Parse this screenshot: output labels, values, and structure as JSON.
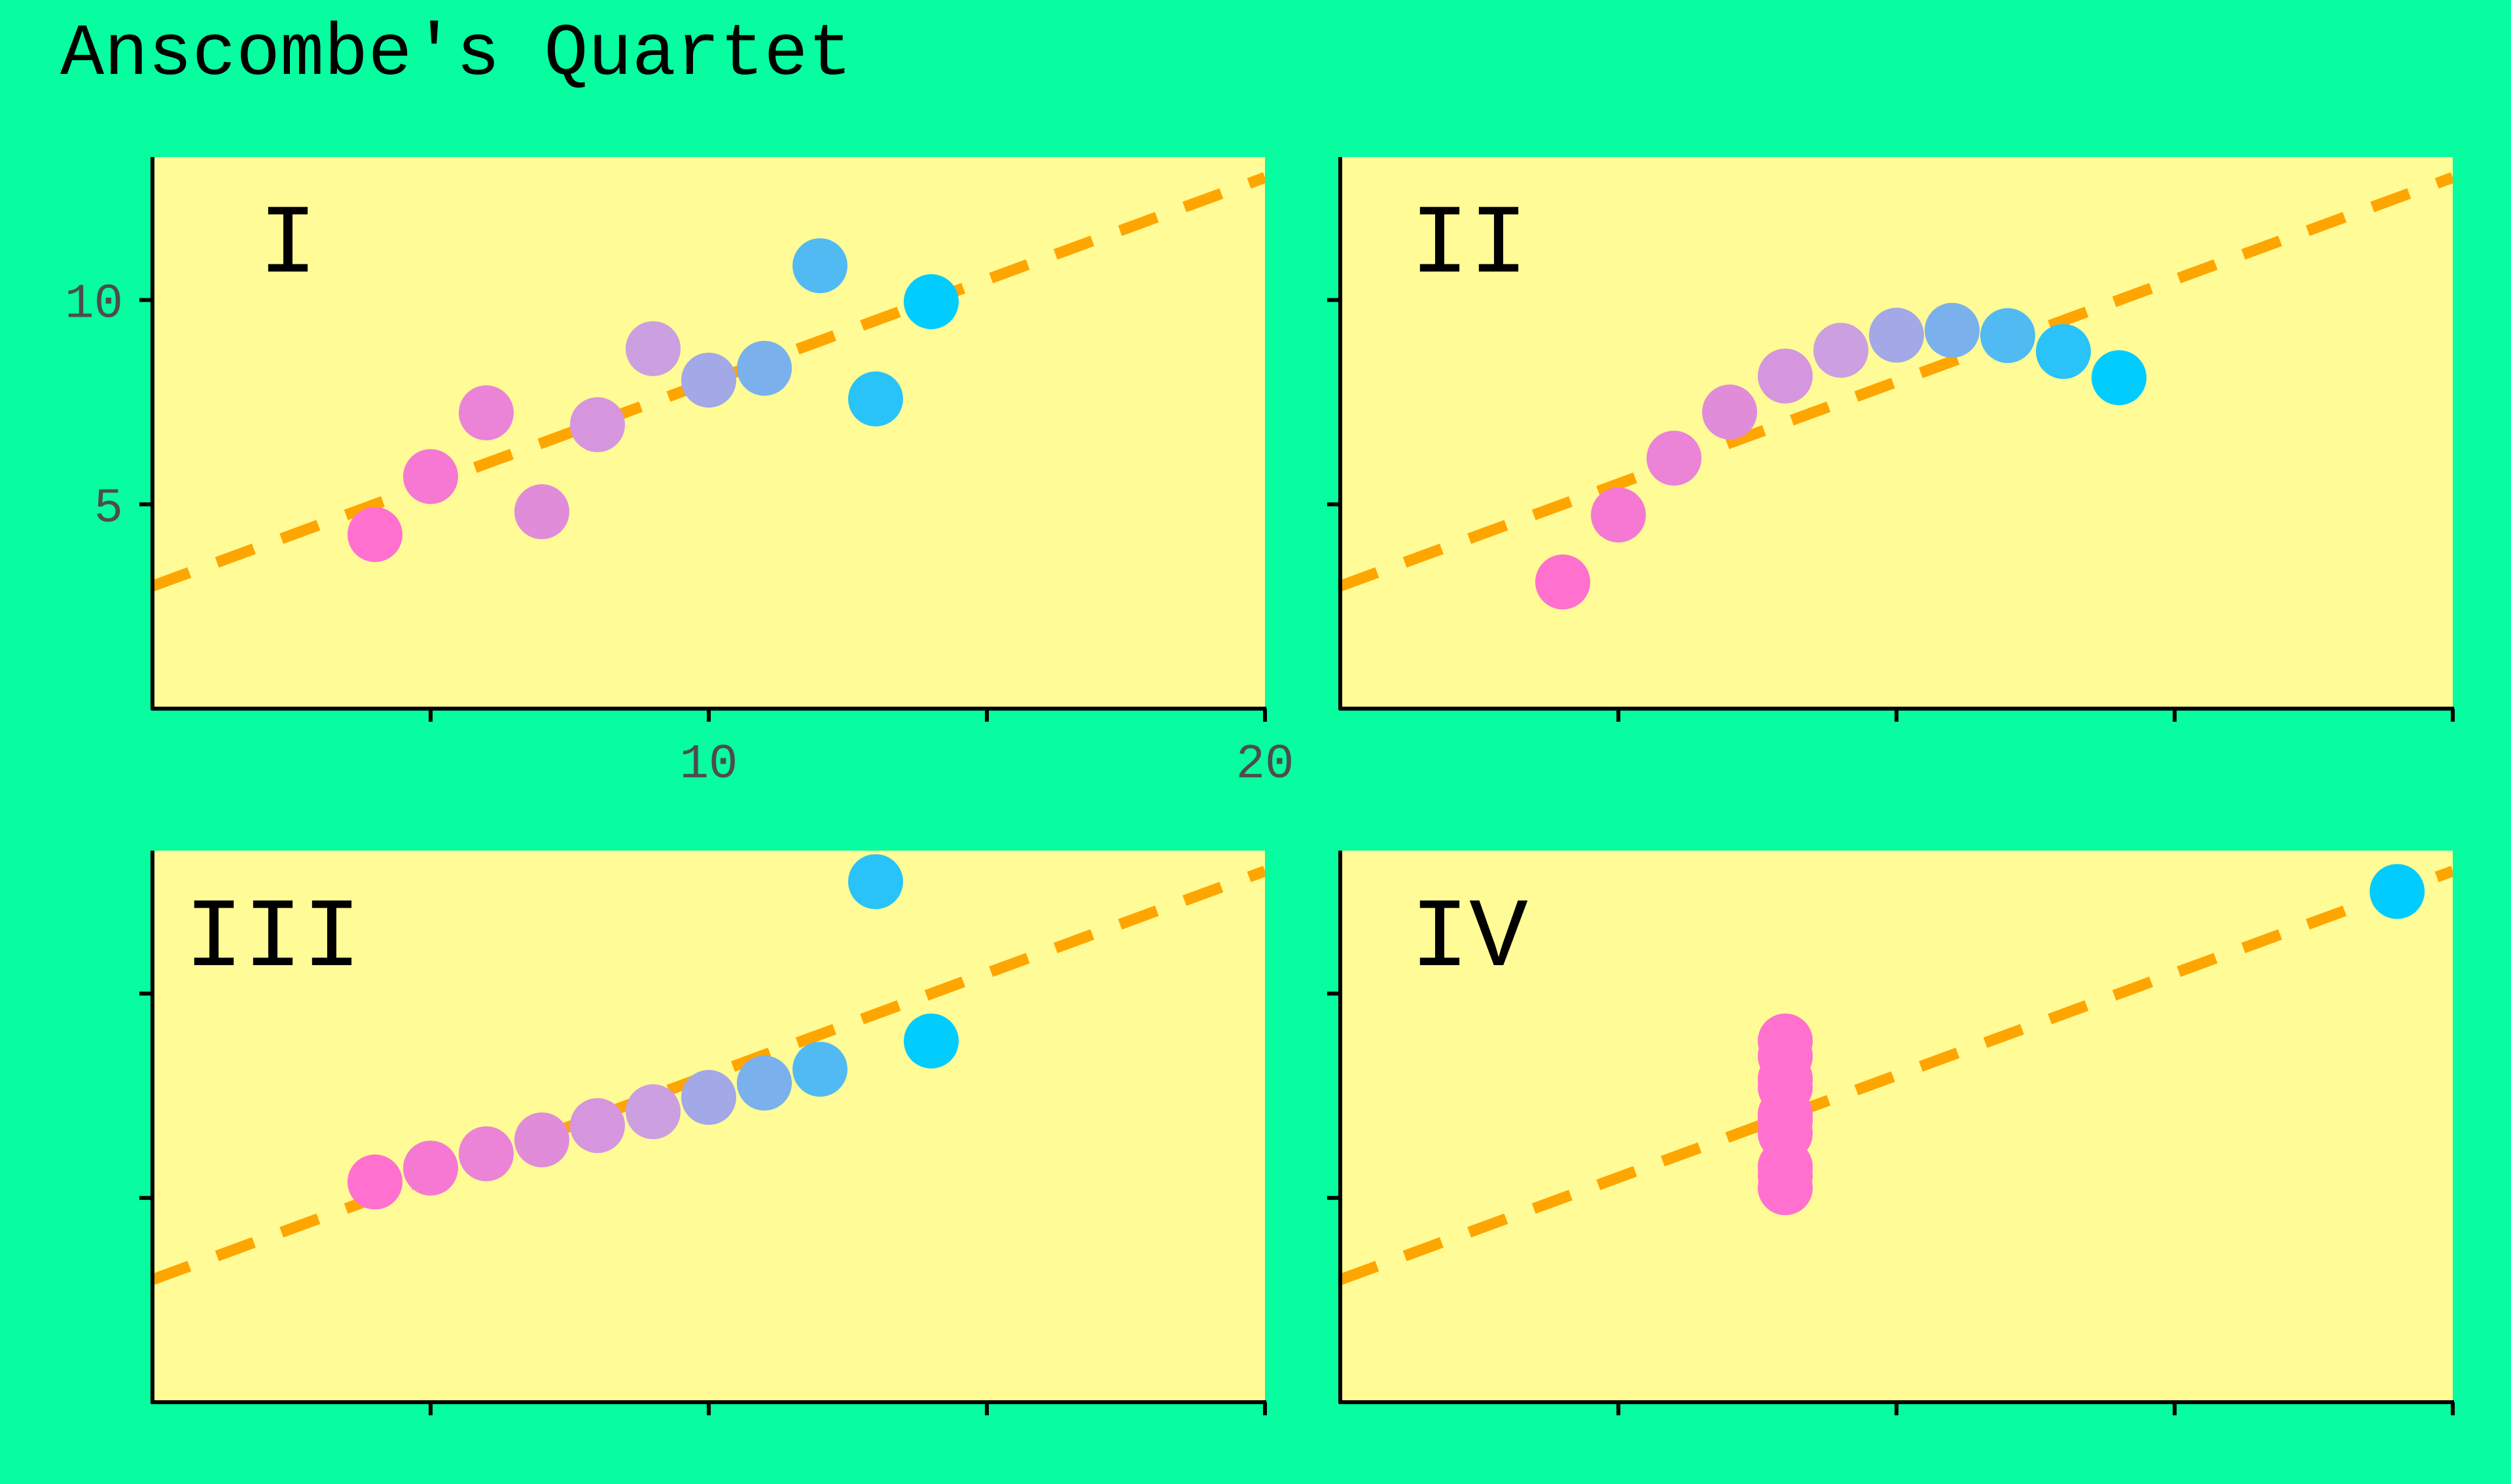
{
  "title": "Anscombe's Quartet",
  "colors": {
    "figure_background": "#07FD9F",
    "panel_background": "#FFFB96",
    "regression_line": "#FFA500",
    "point_gradient": [
      "#FF70CF",
      "#CC9FE0",
      "#00CCFF"
    ]
  },
  "chart_data": [
    {
      "type": "scatter",
      "panel_label": "I",
      "x": [
        10,
        8,
        13,
        9,
        11,
        14,
        6,
        4,
        12,
        7,
        5
      ],
      "y": [
        8.04,
        6.95,
        7.58,
        8.81,
        8.33,
        9.96,
        7.24,
        4.26,
        10.84,
        4.82,
        5.68
      ],
      "fit": {
        "intercept": 3.0,
        "slope": 0.5,
        "style": "dashed"
      },
      "xlim": [
        0,
        20
      ],
      "ylim": [
        0,
        13.5
      ],
      "x_ticks": [
        5,
        10,
        15,
        20
      ],
      "x_tick_labels": [
        "",
        "10",
        "",
        "20"
      ],
      "y_ticks": [
        5,
        10
      ],
      "y_tick_labels": [
        "5",
        "10"
      ],
      "grid": false
    },
    {
      "type": "scatter",
      "panel_label": "II",
      "x": [
        10,
        8,
        13,
        9,
        11,
        14,
        6,
        4,
        12,
        7,
        5
      ],
      "y": [
        9.14,
        8.14,
        8.74,
        8.77,
        9.26,
        8.1,
        6.13,
        3.1,
        9.13,
        7.26,
        4.74
      ],
      "fit": {
        "intercept": 3.0,
        "slope": 0.5,
        "style": "dashed"
      },
      "xlim": [
        0,
        20
      ],
      "ylim": [
        0,
        13.5
      ],
      "x_ticks": [
        5,
        10,
        15,
        20
      ],
      "x_tick_labels": [
        "",
        "",
        "",
        ""
      ],
      "y_ticks": [
        5,
        10
      ],
      "y_tick_labels": [
        "",
        ""
      ],
      "grid": false
    },
    {
      "type": "scatter",
      "panel_label": "III",
      "x": [
        10,
        8,
        13,
        9,
        11,
        14,
        6,
        4,
        12,
        7,
        5
      ],
      "y": [
        7.46,
        6.77,
        12.74,
        7.11,
        7.81,
        8.84,
        6.08,
        5.39,
        8.15,
        6.42,
        5.73
      ],
      "fit": {
        "intercept": 3.0,
        "slope": 0.5,
        "style": "dashed"
      },
      "xlim": [
        0,
        20
      ],
      "ylim": [
        0,
        13.5
      ],
      "x_ticks": [
        5,
        10,
        15,
        20
      ],
      "x_tick_labels": [
        "",
        "",
        "",
        ""
      ],
      "y_ticks": [
        5,
        10
      ],
      "y_tick_labels": [
        "",
        ""
      ],
      "grid": false
    },
    {
      "type": "scatter",
      "panel_label": "IV",
      "x": [
        8,
        8,
        8,
        8,
        8,
        8,
        8,
        19,
        8,
        8,
        8
      ],
      "y": [
        6.58,
        5.76,
        7.71,
        8.84,
        8.47,
        7.04,
        5.25,
        12.5,
        5.56,
        7.91,
        6.89
      ],
      "fit": {
        "intercept": 3.0,
        "slope": 0.5,
        "style": "dashed"
      },
      "xlim": [
        0,
        20
      ],
      "ylim": [
        0,
        13.5
      ],
      "x_ticks": [
        5,
        10,
        15,
        20
      ],
      "x_tick_labels": [
        "",
        "",
        "",
        ""
      ],
      "y_ticks": [
        5,
        10
      ],
      "y_tick_labels": [
        "",
        ""
      ],
      "grid": false
    }
  ]
}
